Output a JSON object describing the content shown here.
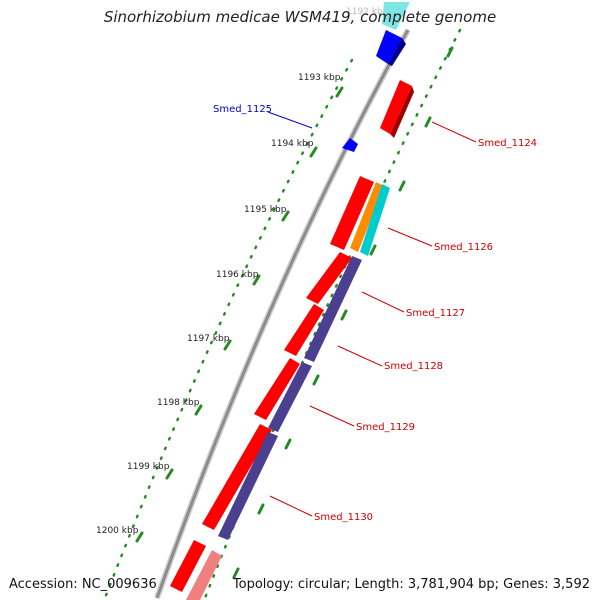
{
  "title": "Sinorhizobium medicae WSM419, complete genome",
  "footer": {
    "accession": "Accession: NC_009636",
    "summary": "Topology: circular; Length: 3,781,904 bp; Genes: 3,592"
  },
  "tick_labels": [
    "1192 kbp",
    "1193 kbp",
    "1194 kbp",
    "1195 kbp",
    "1196 kbp",
    "1197 kbp",
    "1198 kbp",
    "1199 kbp",
    "1200 kbp"
  ],
  "gene_labels": [
    {
      "name": "Smed_1124",
      "color": "#cc0000"
    },
    {
      "name": "Smed_1125",
      "color": "#0000cc"
    },
    {
      "name": "Smed_1126",
      "color": "#cc0000"
    },
    {
      "name": "Smed_1127",
      "color": "#cc0000"
    },
    {
      "name": "Smed_1128",
      "color": "#cc0000"
    },
    {
      "name": "Smed_1129",
      "color": "#cc0000"
    },
    {
      "name": "Smed_1130",
      "color": "#cc0000"
    }
  ],
  "colors": {
    "backbone": "#999999",
    "cds": "#ff0000",
    "blue_gene": "#0000ff",
    "purple_gene": "#4b3f8f",
    "orange_gene": "#ff8c00",
    "cyan_gene": "#00cccc",
    "ticks": "#228b22"
  }
}
